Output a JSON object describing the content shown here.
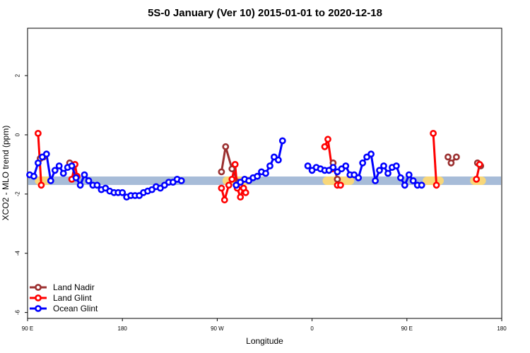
{
  "chart_data": {
    "type": "line",
    "title": "5S-0 January (Ver 10)   2015-01-01 to 2020-12-18",
    "xlabel": "Longitude",
    "ylabel": "XCO2 - MLO trend (ppm)",
    "x_ticks": [
      {
        "pos": 90,
        "label": "90 E"
      },
      {
        "pos": 180,
        "label": "180"
      },
      {
        "pos": 270,
        "label": "90 W"
      },
      {
        "pos": 360,
        "label": "0"
      },
      {
        "pos": 450,
        "label": "90 E"
      },
      {
        "pos": 540,
        "label": "180"
      }
    ],
    "xlim": [
      90,
      540
    ],
    "ylim": [
      -6.2,
      3.6
    ],
    "y_ticks": [
      2,
      0,
      -2,
      -4,
      -6
    ],
    "legend_position": "bottom-left",
    "colors": {
      "land_nadir": "#9b3030",
      "land_glint": "#ff0000",
      "ocean_glint": "#0000ff",
      "ocean_band": "#a7bcd8",
      "land_band": "#f8d77a"
    },
    "band": {
      "y": -1.55,
      "ocean_color": "#a7bcd8",
      "land_color": "#f8d77a",
      "land_segments": [
        [
          97,
          113
        ],
        [
          275,
          303
        ],
        [
          370,
          400
        ],
        [
          465,
          485
        ],
        [
          510,
          525
        ]
      ]
    },
    "series": [
      {
        "name": "Land Nadir",
        "color": "#9b3030",
        "points": [
          [
            102,
            -0.8
          ],
          [
            105,
            -0.75
          ],
          [
            130,
            -0.95
          ],
          [
            133,
            -1.05
          ],
          [
            274,
            -1.25
          ],
          [
            278,
            -0.4
          ],
          [
            284,
            -1.15
          ],
          [
            290,
            -1.6
          ],
          [
            380,
            -0.95
          ],
          [
            384,
            -1.5
          ],
          [
            489,
            -0.75
          ],
          [
            492,
            -0.95
          ],
          [
            497,
            -0.75
          ],
          [
            517,
            -0.95
          ],
          [
            520,
            -1.05
          ]
        ],
        "segments": [
          [
            0,
            1
          ],
          [
            2,
            3
          ],
          [
            4,
            7
          ],
          [
            8,
            9
          ],
          [
            10,
            12
          ],
          [
            13,
            14
          ]
        ]
      },
      {
        "name": "Land Glint",
        "color": "#ff0000",
        "points": [
          [
            100,
            0.05
          ],
          [
            103,
            -1.7
          ],
          [
            132,
            -1.5
          ],
          [
            135,
            -1.0
          ],
          [
            137,
            -1.4
          ],
          [
            274,
            -1.8
          ],
          [
            277,
            -2.2
          ],
          [
            281,
            -1.7
          ],
          [
            284,
            -1.5
          ],
          [
            287,
            -1.0
          ],
          [
            289,
            -1.8
          ],
          [
            292,
            -2.1
          ],
          [
            295,
            -1.8
          ],
          [
            297,
            -1.95
          ],
          [
            372,
            -0.4
          ],
          [
            375,
            -0.15
          ],
          [
            379,
            -1.15
          ],
          [
            384,
            -1.7
          ],
          [
            387,
            -1.7
          ],
          [
            475,
            0.05
          ],
          [
            478,
            -1.7
          ],
          [
            516,
            -1.5
          ],
          [
            519,
            -1.0
          ]
        ],
        "segments": [
          [
            0,
            1
          ],
          [
            2,
            4
          ],
          [
            5,
            13
          ],
          [
            14,
            16
          ],
          [
            17,
            18
          ],
          [
            19,
            20
          ],
          [
            21,
            22
          ]
        ]
      },
      {
        "name": "Ocean Glint",
        "color": "#0000ff",
        "points": [
          [
            92,
            -1.35
          ],
          [
            96,
            -1.4
          ],
          [
            100,
            -0.95
          ],
          [
            104,
            -0.75
          ],
          [
            108,
            -0.65
          ],
          [
            112,
            -1.55
          ],
          [
            116,
            -1.2
          ],
          [
            120,
            -1.05
          ],
          [
            124,
            -1.3
          ],
          [
            128,
            -1.1
          ],
          [
            132,
            -1.05
          ],
          [
            136,
            -1.45
          ],
          [
            140,
            -1.7
          ],
          [
            144,
            -1.35
          ],
          [
            148,
            -1.55
          ],
          [
            152,
            -1.7
          ],
          [
            156,
            -1.7
          ],
          [
            160,
            -1.85
          ],
          [
            164,
            -1.8
          ],
          [
            168,
            -1.9
          ],
          [
            172,
            -1.95
          ],
          [
            176,
            -1.95
          ],
          [
            180,
            -1.95
          ],
          [
            184,
            -2.1
          ],
          [
            188,
            -2.05
          ],
          [
            192,
            -2.05
          ],
          [
            196,
            -2.05
          ],
          [
            200,
            -1.95
          ],
          [
            204,
            -1.9
          ],
          [
            208,
            -1.85
          ],
          [
            212,
            -1.75
          ],
          [
            216,
            -1.8
          ],
          [
            220,
            -1.7
          ],
          [
            224,
            -1.6
          ],
          [
            228,
            -1.6
          ],
          [
            232,
            -1.5
          ],
          [
            236,
            -1.55
          ],
          [
            288,
            -1.7
          ],
          [
            292,
            -1.6
          ],
          [
            296,
            -1.5
          ],
          [
            300,
            -1.55
          ],
          [
            304,
            -1.45
          ],
          [
            308,
            -1.4
          ],
          [
            312,
            -1.25
          ],
          [
            316,
            -1.3
          ],
          [
            320,
            -1.05
          ],
          [
            324,
            -0.75
          ],
          [
            328,
            -0.85
          ],
          [
            332,
            -0.2
          ],
          [
            356,
            -1.05
          ],
          [
            360,
            -1.2
          ],
          [
            364,
            -1.1
          ],
          [
            368,
            -1.15
          ],
          [
            372,
            -1.2
          ],
          [
            376,
            -1.2
          ],
          [
            380,
            -1.1
          ],
          [
            384,
            -1.25
          ],
          [
            388,
            -1.15
          ],
          [
            392,
            -1.05
          ],
          [
            396,
            -1.35
          ],
          [
            400,
            -1.35
          ],
          [
            404,
            -1.45
          ],
          [
            408,
            -0.95
          ],
          [
            412,
            -0.75
          ],
          [
            416,
            -0.65
          ],
          [
            420,
            -1.55
          ],
          [
            424,
            -1.2
          ],
          [
            428,
            -1.05
          ],
          [
            432,
            -1.3
          ],
          [
            436,
            -1.1
          ],
          [
            440,
            -1.05
          ],
          [
            444,
            -1.45
          ],
          [
            448,
            -1.7
          ],
          [
            452,
            -1.35
          ],
          [
            456,
            -1.55
          ],
          [
            460,
            -1.7
          ],
          [
            464,
            -1.7
          ]
        ],
        "segments": [
          [
            0,
            36
          ],
          [
            37,
            48
          ],
          [
            50,
            76
          ]
        ],
        "isolated": [
          49
        ]
      }
    ]
  }
}
